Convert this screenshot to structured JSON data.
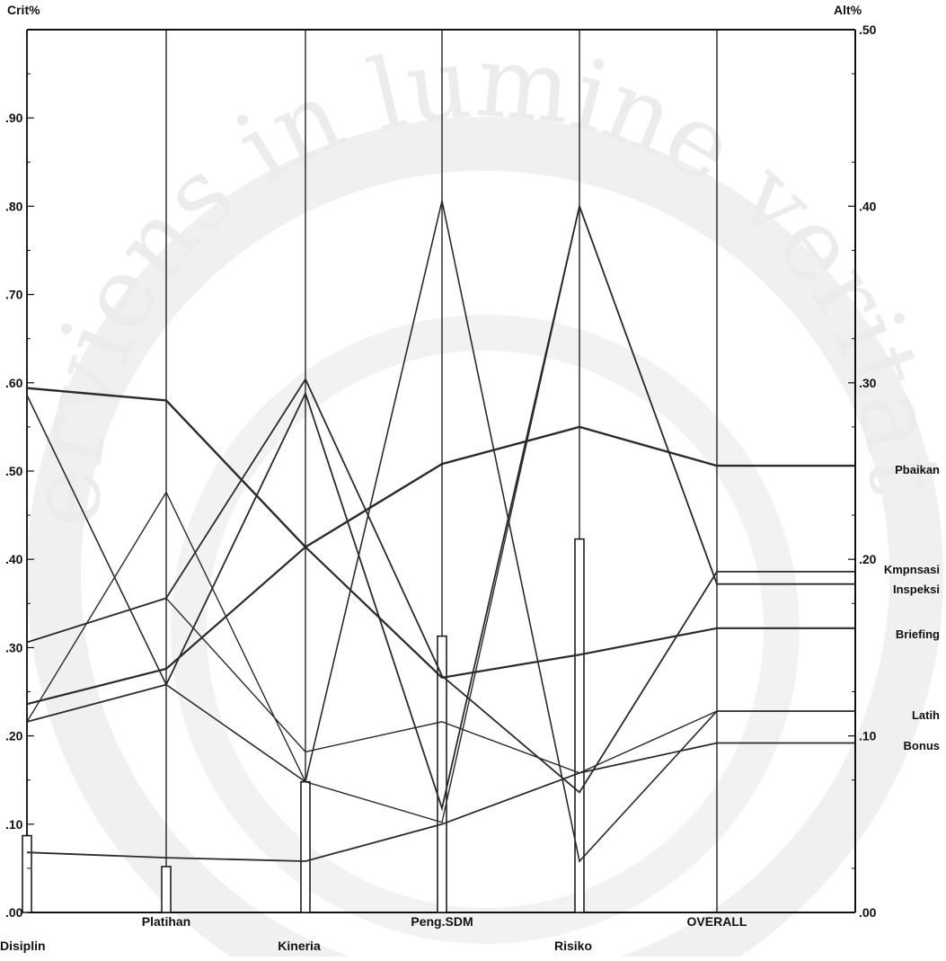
{
  "chart_data": {
    "type": "line",
    "title": "",
    "left_axis": {
      "label": "Crit%",
      "ylim": [
        0,
        1.0
      ],
      "ticks": [
        0.0,
        0.1,
        0.2,
        0.3,
        0.4,
        0.5,
        0.6,
        0.7,
        0.8,
        0.9
      ],
      "tick_labels": [
        ".00",
        ".10",
        ".20",
        ".30",
        ".40",
        ".50",
        ".60",
        ".70",
        ".80",
        ".90"
      ]
    },
    "right_axis": {
      "label": "Alt%",
      "ylim": [
        0,
        0.5
      ],
      "ticks": [
        0.0,
        0.1,
        0.2,
        0.3,
        0.4,
        0.5
      ],
      "tick_labels": [
        ".00",
        ".10",
        ".20",
        ".30",
        ".40",
        ".50"
      ]
    },
    "criteria": [
      "Disiplin",
      "Platihan",
      "Kineria",
      "Peng.SDM",
      "Risiko",
      "OVERALL"
    ],
    "criteria_weights": [
      0.087,
      0.052,
      0.148,
      0.313,
      0.423,
      null
    ],
    "series": [
      {
        "name": "Pbaikan",
        "values": [
          0.297,
          0.29,
          0.207,
          0.254,
          0.275,
          0.253
        ]
      },
      {
        "name": "Kmpnsasi",
        "values": [
          0.153,
          0.178,
          0.302,
          0.134,
          0.068,
          0.193
        ]
      },
      {
        "name": "Inspeksi",
        "values": [
          0.108,
          0.129,
          0.294,
          0.059,
          0.4,
          0.186
        ]
      },
      {
        "name": "Briefing",
        "values": [
          0.118,
          0.138,
          0.207,
          0.133,
          0.146,
          0.161
        ]
      },
      {
        "name": "Latih",
        "values": [
          0.293,
          0.129,
          0.074,
          0.403,
          0.029,
          0.114
        ]
      },
      {
        "name": "Bonus",
        "values": [
          0.034,
          0.031,
          0.029,
          0.05,
          0.079,
          0.096
        ]
      },
      {
        "name": "",
        "values": [
          0.108,
          0.238,
          0.074,
          0.051,
          0.4,
          0.186
        ]
      },
      {
        "name": "",
        "values": [
          0.153,
          0.178,
          0.091,
          0.108,
          0.079,
          0.114
        ]
      }
    ],
    "alternative_labels": [
      "Pbaikan",
      "Kmpnsasi",
      "Inspeksi",
      "Briefing",
      "Latih",
      "Bonus"
    ],
    "watermark": "serviens in lumine veritatis",
    "grid": false,
    "legend": "right"
  }
}
